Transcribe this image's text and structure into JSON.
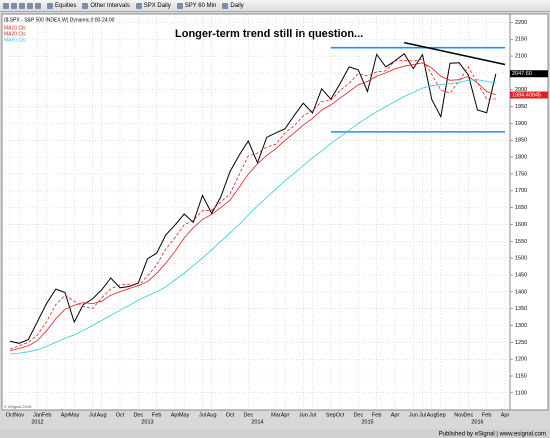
{
  "toolbar": {
    "items": [
      "Equities",
      "Other Intervals",
      "SPX Daily",
      "SPY 60 Min",
      "Daily"
    ]
  },
  "footer": "Published by eSignal | www.esignal.com",
  "copyright": "© eSignal 2016",
  "chart_data": {
    "type": "line",
    "subtitle": "($.SPX - S&P 500 INDEX,W) Dynamic,0:00-24:00",
    "annotation": "Longer-term trend still in question...",
    "categories": [
      "Oct",
      "Nov",
      null,
      "Jan",
      "Feb",
      null,
      "Apr",
      "May",
      null,
      "Jul",
      "Aug",
      null,
      "Oct",
      null,
      "Dec",
      null,
      "Feb",
      null,
      "Apr",
      "May",
      null,
      "Jul",
      "Aug",
      null,
      "Oct",
      null,
      "Dec",
      null,
      null,
      "Mar",
      "Apr",
      null,
      "Jun",
      "Jul",
      null,
      "Sep",
      "Oct",
      null,
      "Dec",
      null,
      "Feb",
      null,
      "Apr",
      null,
      "Jun",
      "Jul",
      "Aug",
      "Sep",
      null,
      "Nov",
      "Dec",
      null,
      "Feb",
      null,
      "Apr"
    ],
    "years": [
      null,
      null,
      null,
      "2012",
      null,
      null,
      null,
      null,
      null,
      null,
      null,
      null,
      null,
      null,
      null,
      "2013",
      null,
      null,
      null,
      null,
      null,
      null,
      null,
      null,
      null,
      null,
      null,
      "2014",
      null,
      null,
      null,
      null,
      null,
      null,
      null,
      null,
      null,
      null,
      null,
      "2015",
      null,
      null,
      null,
      null,
      null,
      null,
      null,
      null,
      null,
      null,
      null,
      "2016",
      null,
      null,
      null
    ],
    "series": [
      {
        "color": "#000000",
        "values": [
          1253,
          1247,
          1258,
          1312,
          1366,
          1408,
          1398,
          1310,
          1362,
          1379,
          1406,
          1441,
          1412,
          1416,
          1426,
          1498,
          1515,
          1569,
          1598,
          1631,
          1606,
          1686,
          1633,
          1682,
          1757,
          1806,
          1848,
          1783,
          1859,
          1872,
          1884,
          1924,
          1960,
          1931,
          2003,
          1972,
          2018,
          2068,
          2059,
          1995,
          2105,
          2068,
          2086,
          2107,
          2063,
          2104,
          1972,
          1920,
          2079,
          2080,
          2044,
          1940,
          1932,
          2047,
          null
        ]
      },
      {
        "name": "MA10.Cls",
        "color": "#e02020",
        "dashed": true,
        "values": [
          1230,
          1240,
          1250,
          1272,
          1312,
          1362,
          1390,
          1372,
          1357,
          1350,
          1382,
          1409,
          1420,
          1423,
          1418,
          1447,
          1480,
          1527,
          1561,
          1599,
          1612,
          1641,
          1642,
          1667,
          1691,
          1748,
          1804,
          1812,
          1830,
          1838,
          1872,
          1893,
          1923,
          1938,
          1965,
          1969,
          1998,
          2019,
          2048,
          2041,
          2053,
          2056,
          2086,
          2087,
          2085,
          2091,
          2046,
          1999,
          1990,
          2026,
          2068,
          2021,
          1972,
          1973,
          null
        ]
      },
      {
        "name": "MA20.Cls",
        "color": "#e02020",
        "values": [
          1225,
          1232,
          1240,
          1255,
          1285,
          1320,
          1348,
          1360,
          1368,
          1365,
          1372,
          1390,
          1400,
          1410,
          1418,
          1430,
          1455,
          1485,
          1520,
          1560,
          1590,
          1615,
          1630,
          1650,
          1672,
          1710,
          1750,
          1780,
          1805,
          1825,
          1850,
          1872,
          1895,
          1915,
          1940,
          1955,
          1975,
          1995,
          2015,
          2025,
          2040,
          2050,
          2062,
          2070,
          2075,
          2080,
          2065,
          2040,
          2028,
          2030,
          2040,
          2020,
          1995,
          1985,
          null
        ]
      },
      {
        "name": "MA50.Cls",
        "color": "#33ccdd",
        "values": [
          1215,
          1218,
          1222,
          1228,
          1238,
          1250,
          1262,
          1272,
          1285,
          1300,
          1315,
          1330,
          1345,
          1360,
          1375,
          1388,
          1400,
          1415,
          1435,
          1455,
          1478,
          1500,
          1525,
          1550,
          1575,
          1600,
          1628,
          1655,
          1680,
          1705,
          1730,
          1752,
          1775,
          1798,
          1818,
          1840,
          1860,
          1880,
          1900,
          1918,
          1935,
          1950,
          1965,
          1980,
          1992,
          2005,
          2012,
          2015,
          2018,
          2022,
          2028,
          2030,
          2025,
          2020,
          null
        ]
      }
    ],
    "trendlines": [
      {
        "start": 35,
        "end": 54,
        "from": 2125,
        "to": 2125,
        "color": "#1e90ff"
      },
      {
        "start": 35,
        "end": 54,
        "from": 1875,
        "to": 1875,
        "color": "#1e90ff"
      },
      {
        "start": 43,
        "end": 54,
        "from": 2140,
        "to": 2075,
        "color": "#000000"
      }
    ],
    "price_tags": [
      {
        "value": 2047.6,
        "label": "2047.60",
        "color": "#000000"
      },
      {
        "value": 1984.40945,
        "label": "1984.40945",
        "color": "#e02020"
      }
    ],
    "ylim": [
      1055,
      2225
    ],
    "yticks": [
      1100,
      1150,
      1200,
      1250,
      1300,
      1350,
      1400,
      1450,
      1500,
      1550,
      1600,
      1650,
      1700,
      1750,
      1800,
      1850,
      1900,
      1950,
      2000,
      2050,
      2100,
      2150,
      2200
    ],
    "grid": true
  }
}
